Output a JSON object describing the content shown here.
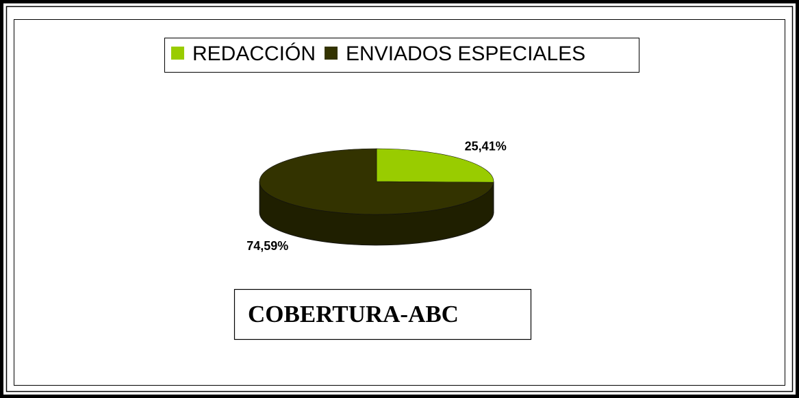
{
  "chart_data": {
    "type": "pie3d",
    "title": "COBERTURA-ABC",
    "categories": [
      "REDACCIÓN",
      "ENVIADOS ESPECIALES"
    ],
    "values": [
      25.41,
      74.59
    ],
    "value_labels": [
      "25,41%",
      "74,59%"
    ],
    "colors": [
      "#99cc00",
      "#333300"
    ],
    "legend": "top"
  }
}
